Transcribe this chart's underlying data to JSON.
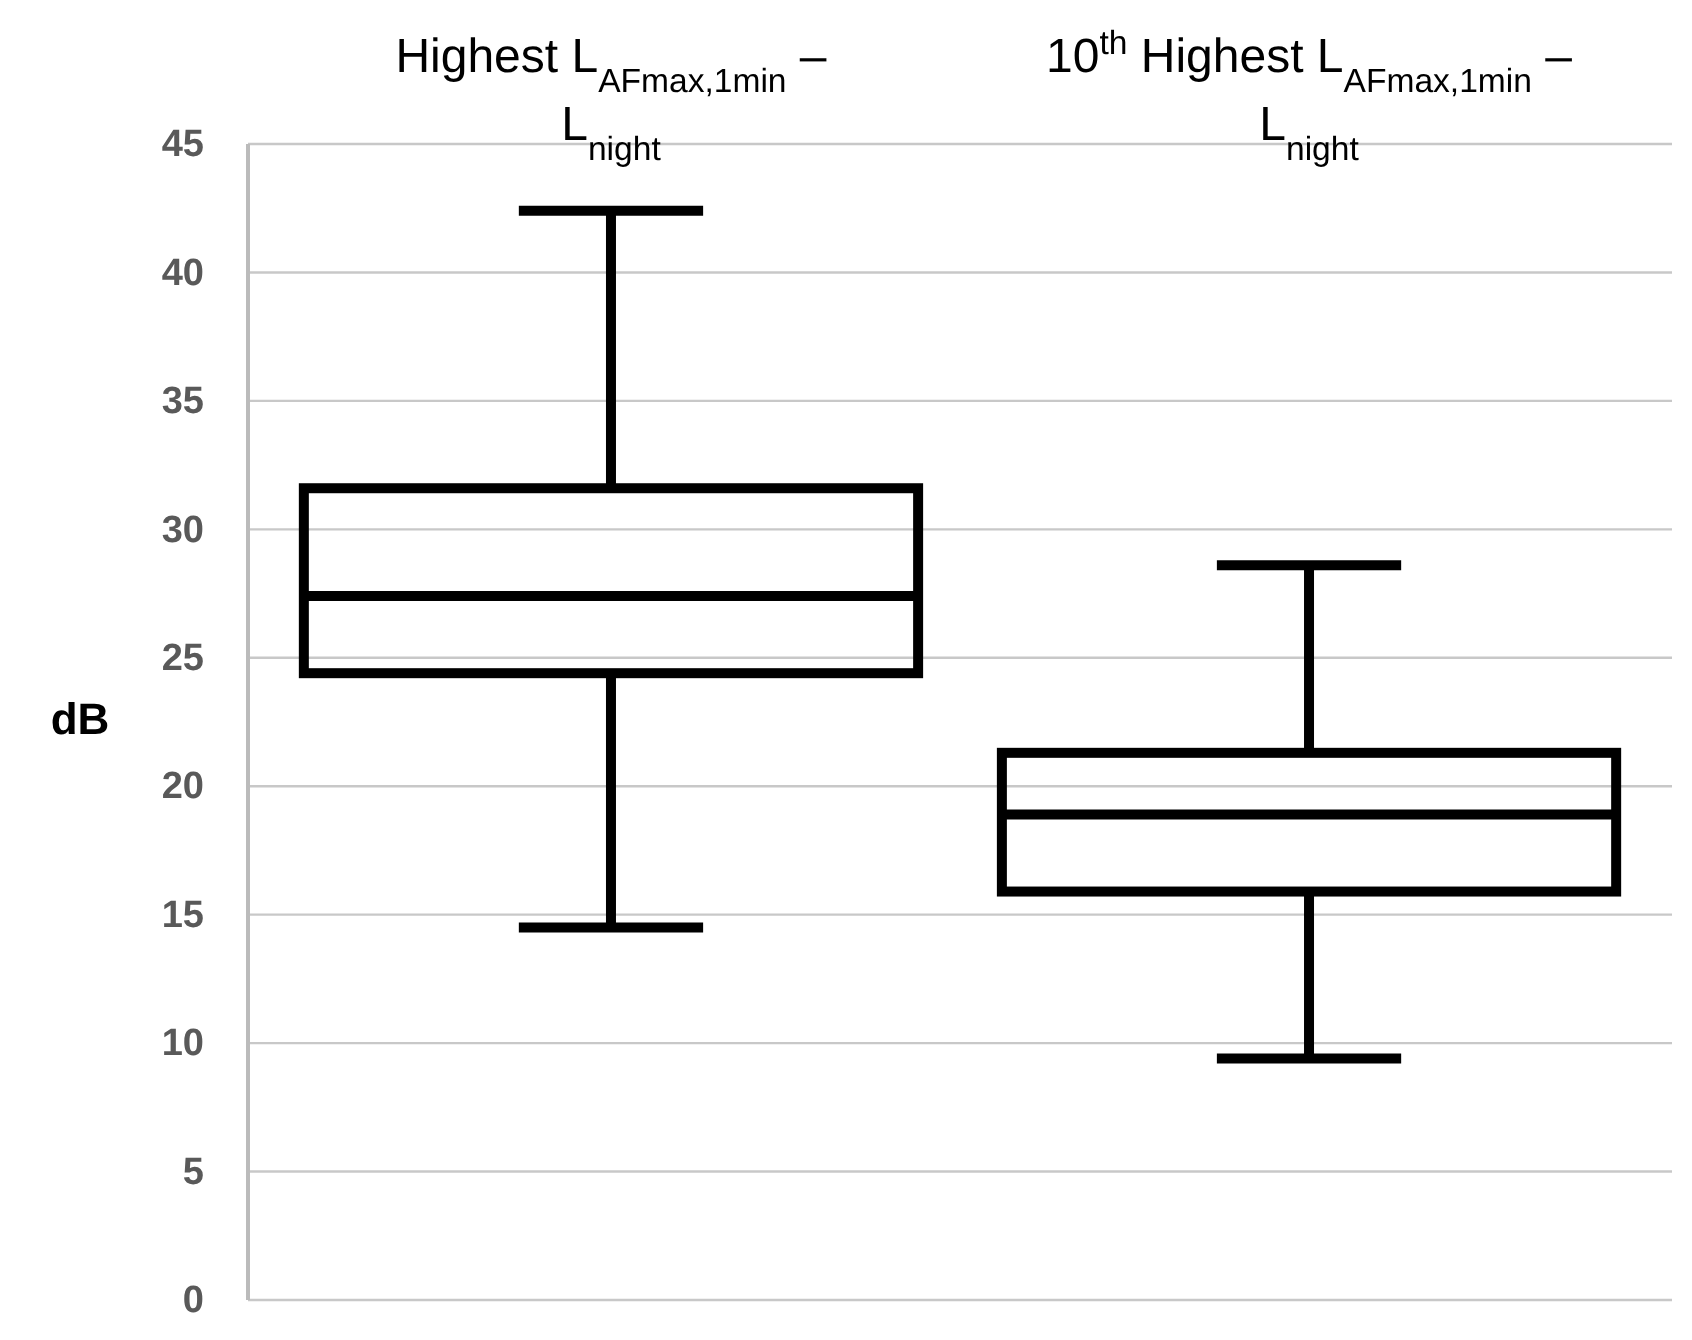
{
  "chart_data": {
    "type": "box",
    "ylabel": "dB",
    "categories": [
      "Highest L$_{AFmax,1min}$ – L$_{night}$",
      "10$^{th}$ Highest L$_{AFmax,1min}$ – L$_{night}$"
    ],
    "boxes": [
      {
        "low": 14.5,
        "q1": 24.4,
        "median": 27.4,
        "q3": 31.6,
        "high": 42.4
      },
      {
        "low": 9.4,
        "q1": 15.9,
        "median": 18.9,
        "q3": 21.3,
        "high": 28.6
      }
    ],
    "color": "#000000",
    "ylim": [
      0,
      45
    ],
    "yticks": [
      0,
      5,
      10,
      15,
      20,
      25,
      30,
      35,
      40,
      45
    ],
    "grid": "y"
  }
}
